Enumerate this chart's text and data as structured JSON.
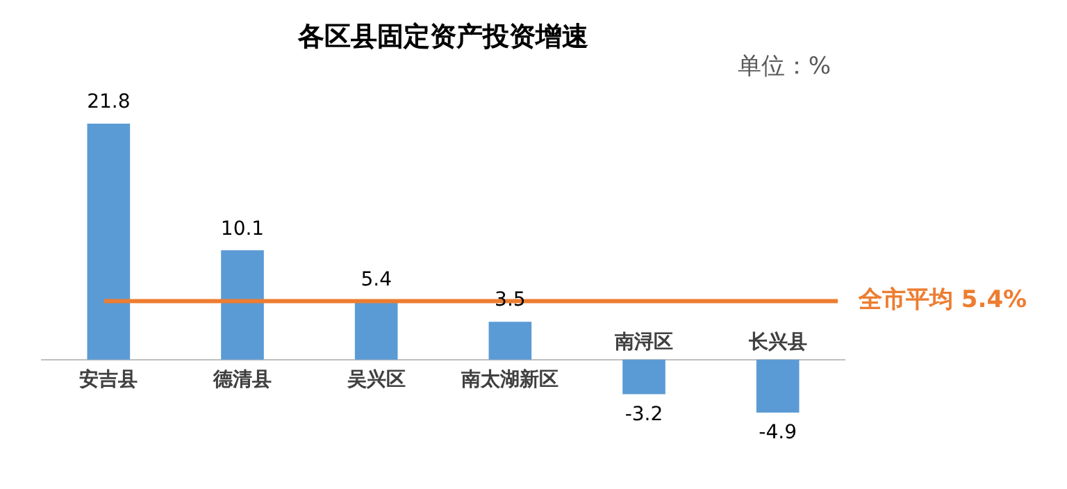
{
  "chart_data": {
    "type": "bar",
    "title": "各区县固定资产投资增速",
    "annotations": [
      "单位：%"
    ],
    "categories": [
      "安吉县",
      "德清县",
      "吴兴区",
      "南太湖新区",
      "南浔区",
      "长兴县"
    ],
    "values": [
      21.8,
      10.1,
      5.4,
      3.5,
      -3.2,
      -4.9
    ],
    "color": "#5b9bd5",
    "data_labels": true,
    "ref_lines": [
      {
        "axis": "y",
        "value": 5.4,
        "label": "全市平均 5.4%",
        "color": "#ed7d31"
      }
    ],
    "grid": false,
    "legend": false
  }
}
